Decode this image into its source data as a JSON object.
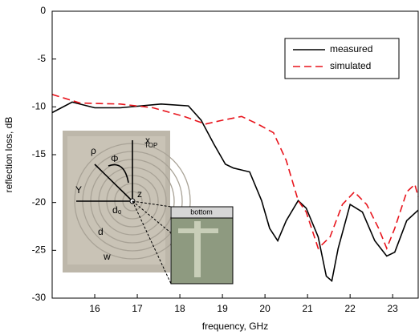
{
  "chart_data": {
    "type": "line",
    "xlabel": "frequency, GHz",
    "ylabel": "reflection loss, dB",
    "xlim": [
      15,
      23.6
    ],
    "ylim": [
      -30,
      0
    ],
    "xticks": [
      16,
      17,
      18,
      19,
      20,
      21,
      22,
      23
    ],
    "yticks": [
      0,
      -5,
      -10,
      -15,
      -20,
      -25,
      -30
    ],
    "legend": "upper right",
    "series": [
      {
        "name": "measured",
        "color": "#000000",
        "dash": "solid",
        "x": [
          15,
          15.47,
          16.0,
          16.6,
          17.56,
          18.2,
          18.5,
          18.8,
          19.07,
          19.26,
          19.45,
          19.64,
          19.92,
          20.11,
          20.3,
          20.5,
          20.78,
          20.97,
          21.25,
          21.44,
          21.57,
          21.72,
          22.0,
          22.29,
          22.58,
          22.86,
          23.05,
          23.33,
          23.6
        ],
        "values": [
          -10.6,
          -9.5,
          -10.1,
          -10.1,
          -9.7,
          -9.9,
          -11.4,
          -13.9,
          -16,
          -16.4,
          -16.6,
          -16.8,
          -19.8,
          -22.7,
          -24,
          -21.9,
          -19.8,
          -20.6,
          -23.6,
          -27.7,
          -28.2,
          -24.8,
          -20.2,
          -21,
          -24,
          -25.6,
          -25.2,
          -21.9,
          -20.8
        ]
      },
      {
        "name": "simulated",
        "color": "#e8141c",
        "dash": "dashed",
        "x": [
          15,
          15.66,
          16.6,
          17.37,
          18.1,
          18.6,
          19.0,
          19.45,
          19.83,
          20.2,
          20.5,
          20.78,
          20.97,
          21.25,
          21.53,
          21.82,
          22.1,
          22.39,
          22.67,
          22.86,
          23.05,
          23.33,
          23.52,
          23.6
        ],
        "values": [
          -8.7,
          -9.6,
          -9.7,
          -10.1,
          -11,
          -11.8,
          -11.4,
          -11,
          -11.8,
          -12.7,
          -15.6,
          -19.8,
          -21,
          -24.8,
          -23.6,
          -20.2,
          -18.9,
          -20.2,
          -22.7,
          -24.8,
          -22.7,
          -18.9,
          -18.1,
          -19.4
        ]
      }
    ],
    "inset_labels": [
      "x",
      "ρ",
      "Φ",
      "Y",
      "z",
      "TOP",
      "d₀",
      "d",
      "w",
      "bottom"
    ]
  }
}
